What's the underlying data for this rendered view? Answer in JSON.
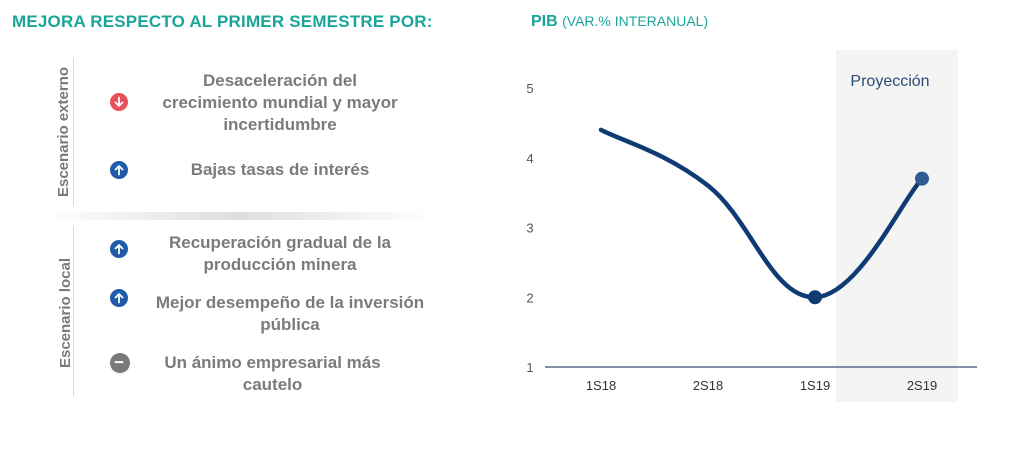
{
  "left": {
    "title": "MEJORA RESPECTO AL PRIMER SEMESTRE POR:",
    "external_label": "Escenario externo",
    "local_label": "Escenario local",
    "factors": [
      {
        "icon": "arrow-down-icon",
        "color": "#e8505b",
        "lines": [
          "Desaceleración del",
          "crecimiento mundial y mayor",
          "incertidumbre"
        ]
      },
      {
        "icon": "arrow-up-icon",
        "color": "#1f5ba8",
        "lines": [
          "Bajas tasas de interés"
        ]
      },
      {
        "icon": "arrow-up-icon",
        "color": "#1f5ba8",
        "lines": [
          "Recuperación gradual de  la",
          "producción minera"
        ]
      },
      {
        "icon": "arrow-up-icon",
        "color": "#1f5ba8",
        "lines": [
          "Mejor desempeño de la inversión",
          "pública"
        ]
      },
      {
        "icon": "neutral-icon",
        "color": "#7a7a7a",
        "lines": [
          "Un ánimo empresarial más",
          "cautelo"
        ]
      }
    ]
  },
  "chart_data": {
    "type": "line",
    "title": "PIB",
    "subtitle": "(VAR.% INTERANUAL)",
    "categories": [
      "1S18",
      "2S18",
      "1S19",
      "2S19"
    ],
    "series": [
      {
        "values": [
          4.4,
          3.6,
          2.0,
          3.7
        ]
      }
    ],
    "markers_on": [
      "1S19",
      "2S19"
    ],
    "ylim": [
      1,
      5
    ],
    "yticks": [
      1,
      2,
      3,
      4,
      5
    ],
    "shaded_region": {
      "category": "2S19",
      "label": "Proyección"
    },
    "line_color": "#0f3b73",
    "grid": false
  }
}
